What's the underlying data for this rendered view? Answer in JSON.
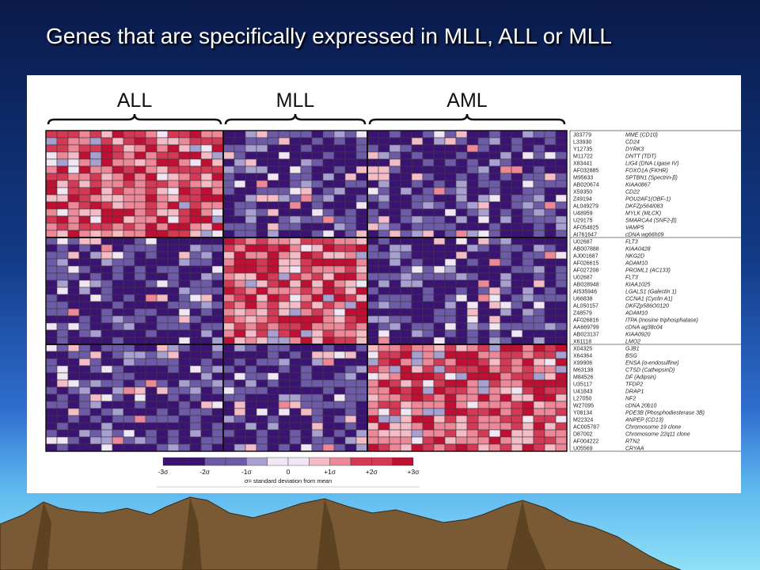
{
  "slide": {
    "title": "Genes that are specifically expressed in MLL, ALL or MLL"
  },
  "colors": {
    "low": "#3b1373",
    "mid_low": "#a8a0d0",
    "mid": "#f0e6f4",
    "mid_high": "#ec8898",
    "high": "#bf0f32",
    "grid": "#3c3c3c"
  },
  "chart_data": {
    "type": "heatmap",
    "title": "",
    "groups": [
      {
        "label": "ALL",
        "samples": 16
      },
      {
        "label": "MLL",
        "samples": 13
      },
      {
        "label": "AML",
        "samples": 18
      }
    ],
    "gene_blocks": [
      {
        "high_in": "ALL",
        "genes": [
          {
            "id": "J03779",
            "name": "MME (CD10)"
          },
          {
            "id": "L33930",
            "name": "CD24"
          },
          {
            "id": "Y12735",
            "name": "DYRK3"
          },
          {
            "id": "M11722",
            "name": "DNTT (TDT)"
          },
          {
            "id": "X83441",
            "name": "LIG4 (DNA Ligase IV)"
          },
          {
            "id": "AF032885",
            "name": "FOXO1A (FKHR)"
          },
          {
            "id": "M95633",
            "name": "SPTBN1 (Spectrin-β)"
          },
          {
            "id": "AB020674",
            "name": "KIAA0867"
          },
          {
            "id": "X59350",
            "name": "CD22"
          },
          {
            "id": "Z49194",
            "name": "POU2AF1(OBF-1)"
          },
          {
            "id": "AL049279",
            "name": "DKFZp564I083"
          },
          {
            "id": "U48959",
            "name": "MYLK (MLCK)"
          },
          {
            "id": "U29175",
            "name": "SMARCA4 (SNF2-β)"
          },
          {
            "id": "AF054825",
            "name": "VAMP5"
          },
          {
            "id": "AI761647",
            "name": "cDNA wg66h09"
          }
        ]
      },
      {
        "high_in": "MLL",
        "genes": [
          {
            "id": "U02687",
            "name": "FLT3"
          },
          {
            "id": "AB007888",
            "name": "KIAA0428"
          },
          {
            "id": "AJ001687",
            "name": "NKG2D"
          },
          {
            "id": "AF026615",
            "name": "ADAM10"
          },
          {
            "id": "AF027208",
            "name": "PROML1 (AC133)"
          },
          {
            "id": "U02687",
            "name": "FLT3"
          },
          {
            "id": "AB028948",
            "name": "KIAA1025"
          },
          {
            "id": "AI535946",
            "name": "LGALS1 (Galectin 1)"
          },
          {
            "id": "U66838",
            "name": "CCNA1 (Cyclin A1)"
          },
          {
            "id": "AL050157",
            "name": "DKFZp586O0120"
          },
          {
            "id": "Z48579",
            "name": "ADAM10"
          },
          {
            "id": "AF026816",
            "name": "ITPA (Inosine triphosphatase)"
          },
          {
            "id": "AA669799",
            "name": "cDNA ag38c04"
          },
          {
            "id": "AB023137",
            "name": "KIAA0920"
          },
          {
            "id": "X61118",
            "name": "LMO2"
          }
        ]
      },
      {
        "high_in": "AML",
        "genes": [
          {
            "id": "X04325",
            "name": "GJB1"
          },
          {
            "id": "X64364",
            "name": "BSG"
          },
          {
            "id": "X99906",
            "name": "ENSA (α-endosulfine)"
          },
          {
            "id": "M63138",
            "name": "CTSD (CathepsinD)"
          },
          {
            "id": "M84526",
            "name": "DF (Adipsin)"
          },
          {
            "id": "U35117",
            "name": "TFDP2"
          },
          {
            "id": "U41843",
            "name": "DRAP1"
          },
          {
            "id": "L27050",
            "name": "NF2"
          },
          {
            "id": "W27095",
            "name": "cDNA 20b10"
          },
          {
            "id": "Y08134",
            "name": "PDE3B (Phosphodiesterase 3B)"
          },
          {
            "id": "M22324",
            "name": "ANPEP (CD13)"
          },
          {
            "id": "AC005787",
            "name": "Chromosome 19 clone"
          },
          {
            "id": "D87002",
            "name": "Chromosome 22q11 clone"
          },
          {
            "id": "AF004222",
            "name": "RTN2"
          },
          {
            "id": "U05569",
            "name": "CRYAA"
          }
        ]
      }
    ],
    "legend": {
      "ticks": [
        "-3σ",
        "-2σ",
        "-1σ",
        "0",
        "+1σ",
        "+2σ",
        "+3σ"
      ],
      "caption": "σ= standard deviation from mean",
      "range": [
        -3,
        3
      ]
    }
  }
}
